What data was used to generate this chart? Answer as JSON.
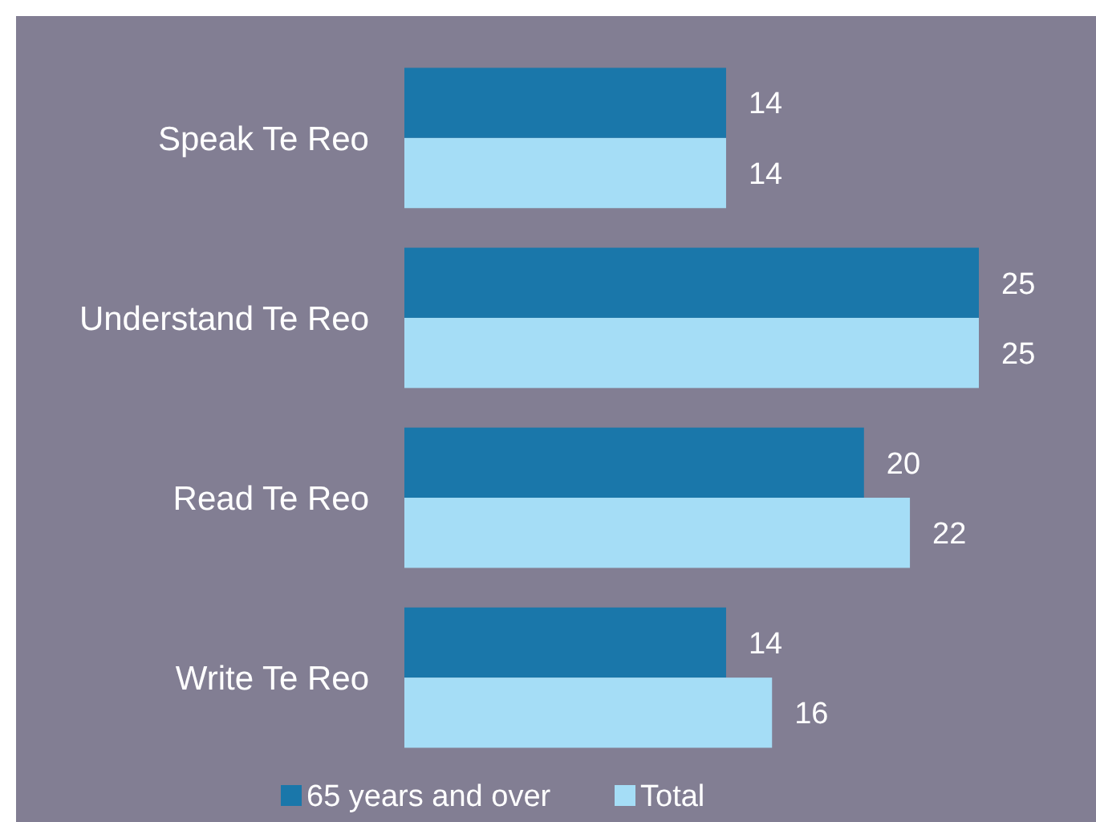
{
  "chart_data": {
    "type": "bar",
    "orientation": "horizontal",
    "categories": [
      "Speak Te Reo",
      "Understand Te Reo",
      "Read Te Reo",
      "Write Te Reo"
    ],
    "series": [
      {
        "name": "65 years and over",
        "color": "#1a77aa",
        "values": [
          14,
          25,
          20,
          14
        ]
      },
      {
        "name": "Total",
        "color": "#a5ddf6",
        "values": [
          14,
          25,
          22,
          16
        ]
      }
    ],
    "data_labels": true,
    "legend": "bottom",
    "grid": false
  }
}
